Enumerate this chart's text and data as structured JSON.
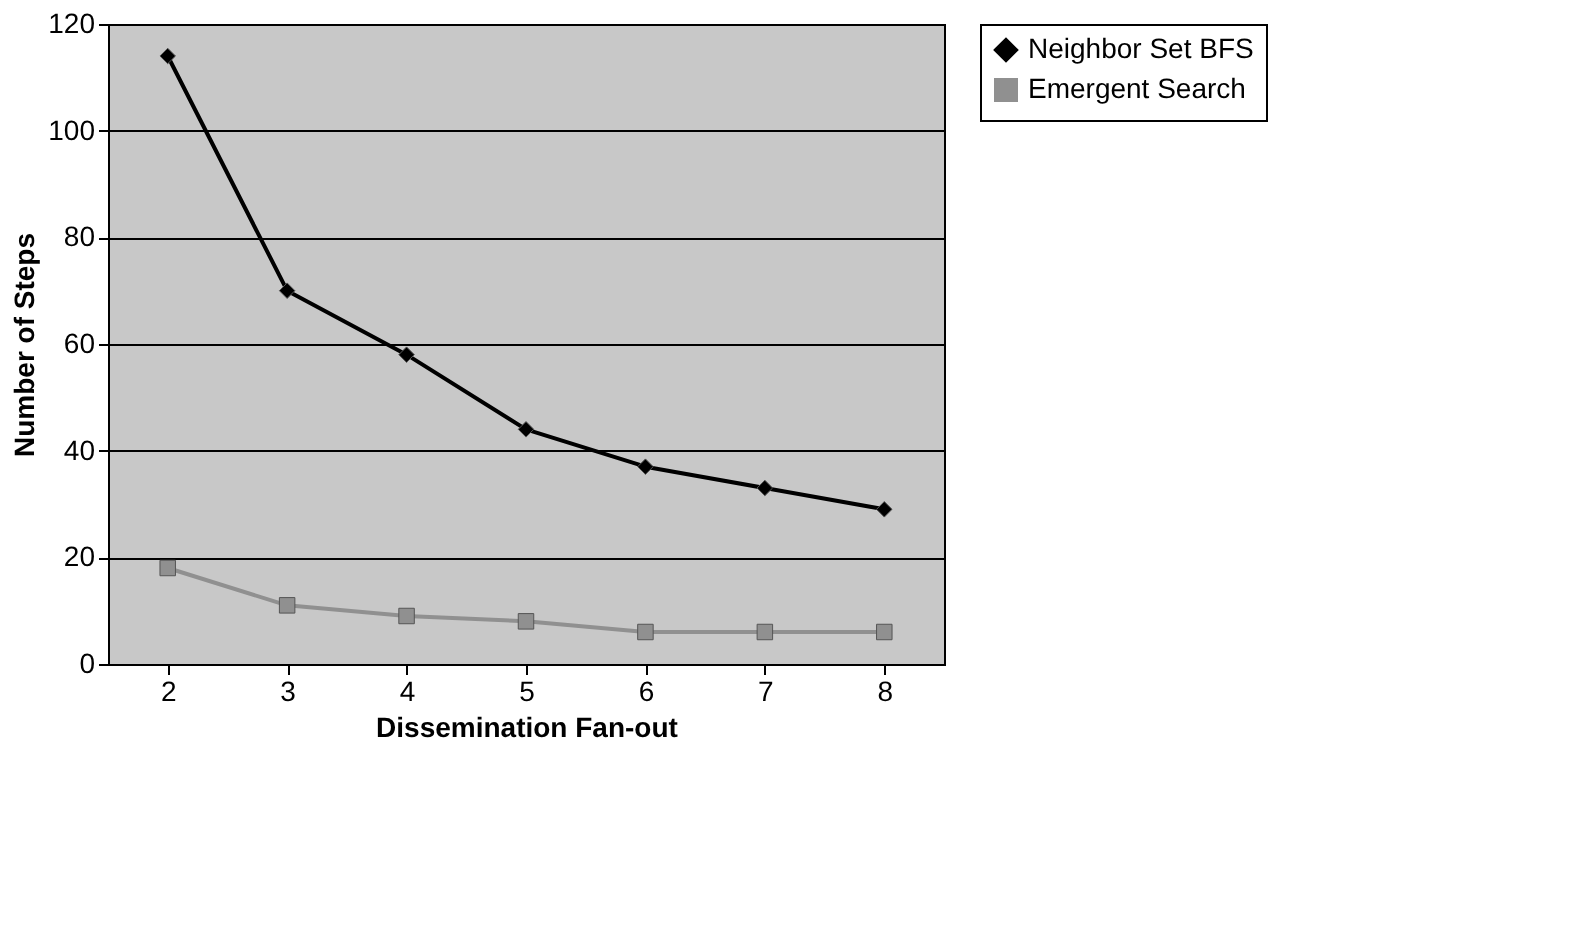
{
  "chart_data": {
    "type": "line",
    "xlabel": "Dissemination Fan-out",
    "ylabel": "Number of Steps",
    "categories": [
      "2",
      "3",
      "4",
      "5",
      "6",
      "7",
      "8"
    ],
    "series": [
      {
        "name": "Neighbor Set BFS",
        "color": "#000000",
        "marker": "diamond",
        "values": [
          114,
          70,
          58,
          44,
          37,
          33,
          29
        ]
      },
      {
        "name": "Emergent Search",
        "color": "#909090",
        "marker": "square",
        "values": [
          18,
          11,
          9,
          8,
          6,
          6,
          6
        ]
      }
    ],
    "ylim": [
      0,
      120
    ],
    "yticks": [
      0,
      20,
      40,
      60,
      80,
      100,
      120
    ],
    "grid": "y",
    "legend": "right"
  }
}
